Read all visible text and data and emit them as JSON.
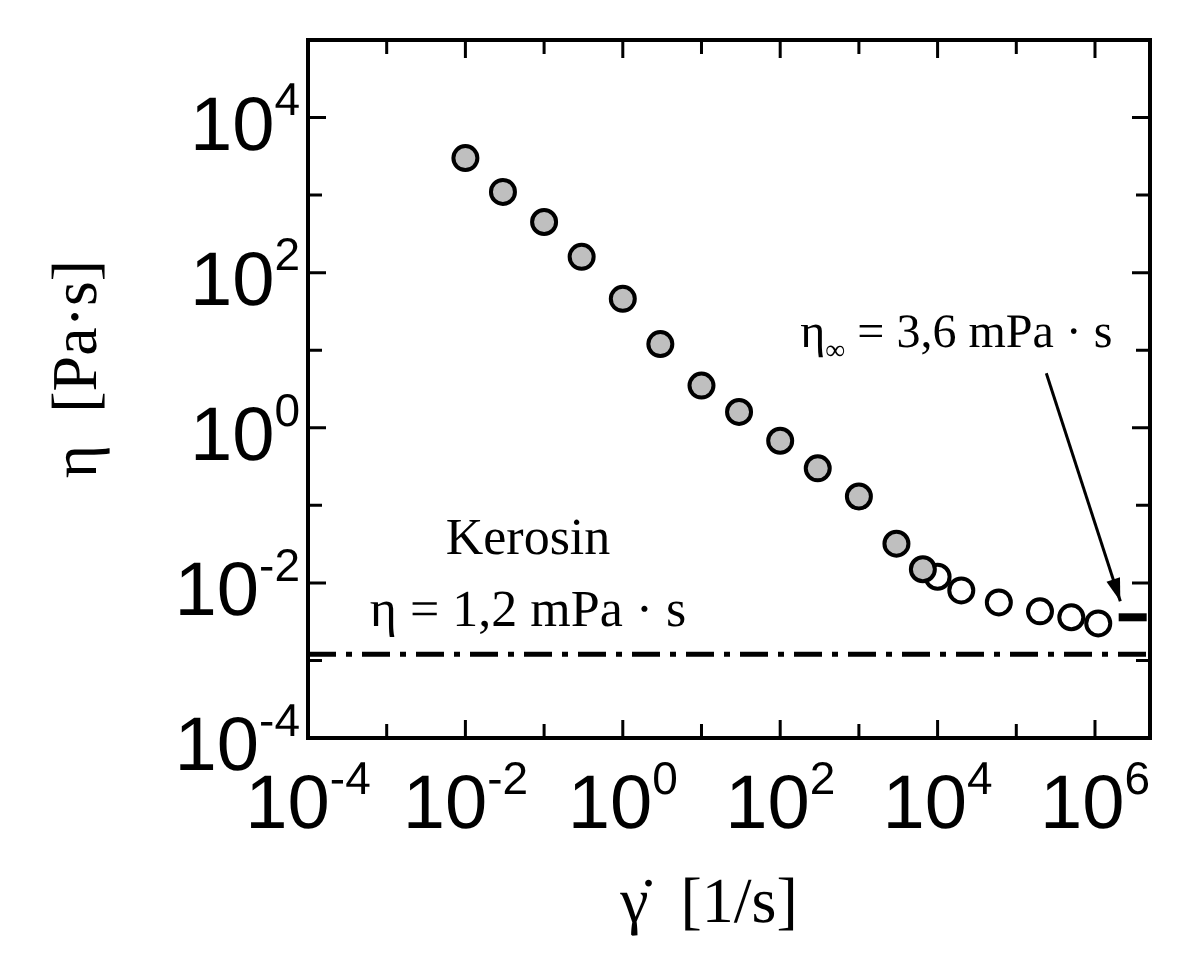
{
  "chart_data": {
    "type": "scatter",
    "xlabel": "γ̇  [1/s]",
    "ylabel": "η  [Pa·s]",
    "log": "xy",
    "marker": "circle",
    "xlim": [
      0.0001,
      5000000
    ],
    "ylim": [
      0.0001,
      100000
    ],
    "xticks": [
      {
        "value": 0.0001,
        "label": "10$^{-4}$"
      },
      {
        "value": 0.001,
        "label": null
      },
      {
        "value": 0.01,
        "label": "10$^{-2}$"
      },
      {
        "value": 0.1,
        "label": null
      },
      {
        "value": 1,
        "label": "10$^{0}$"
      },
      {
        "value": 10,
        "label": null
      },
      {
        "value": 100,
        "label": "10$^{2}$"
      },
      {
        "value": 1000,
        "label": null
      },
      {
        "value": 10000,
        "label": "10$^{4}$"
      },
      {
        "value": 100000,
        "label": null
      },
      {
        "value": 1000000,
        "label": "10$^{6}$"
      }
    ],
    "yticks": [
      {
        "value": 0.0001,
        "label": "10$^{-4}$"
      },
      {
        "value": 0.001,
        "label": null
      },
      {
        "value": 0.01,
        "label": "10$^{-2}$"
      },
      {
        "value": 0.1,
        "label": null
      },
      {
        "value": 1,
        "label": "10$^{0}$"
      },
      {
        "value": 10,
        "label": null
      },
      {
        "value": 100,
        "label": "10$^{2}$"
      },
      {
        "value": 1000,
        "label": null
      },
      {
        "value": 10000,
        "label": "10$^{4}$"
      },
      {
        "value": 100000,
        "label": null
      }
    ],
    "series": [
      {
        "color": "#bfbfbf",
        "x": [
          0.01,
          0.03,
          0.1,
          0.3,
          1,
          3,
          10,
          30,
          100,
          300,
          1000,
          3000,
          6500
        ],
        "values": [
          3000,
          1100,
          450,
          160,
          46,
          12,
          3.5,
          1.6,
          0.68,
          0.3,
          0.13,
          0.032,
          0.015
        ]
      },
      {
        "color": "#ffffff",
        "x": [
          10000,
          20000,
          60000,
          200000,
          500000,
          1100000
        ],
        "values": [
          0.012,
          0.008,
          0.0056,
          0.0043,
          0.0036,
          0.003
        ]
      },
      {
        "type": "line",
        "color": "#000000",
        "line_style": "dashed",
        "marker": "none",
        "x": [
          2000000,
          5000000
        ],
        "values": [
          0.0036,
          0.0036
        ]
      }
    ],
    "ref_lines": [
      {
        "axis": "y",
        "value": 0.0012,
        "label": "η = 1,2 mPa · s",
        "color": "#000000",
        "line_style": "dashed"
      }
    ],
    "annotations": [
      "Kerosin",
      {
        "text": "η$_{∞}$ = 3,6 mPa · s",
        "x": 2500000,
        "y": 0.0036
      }
    ]
  }
}
